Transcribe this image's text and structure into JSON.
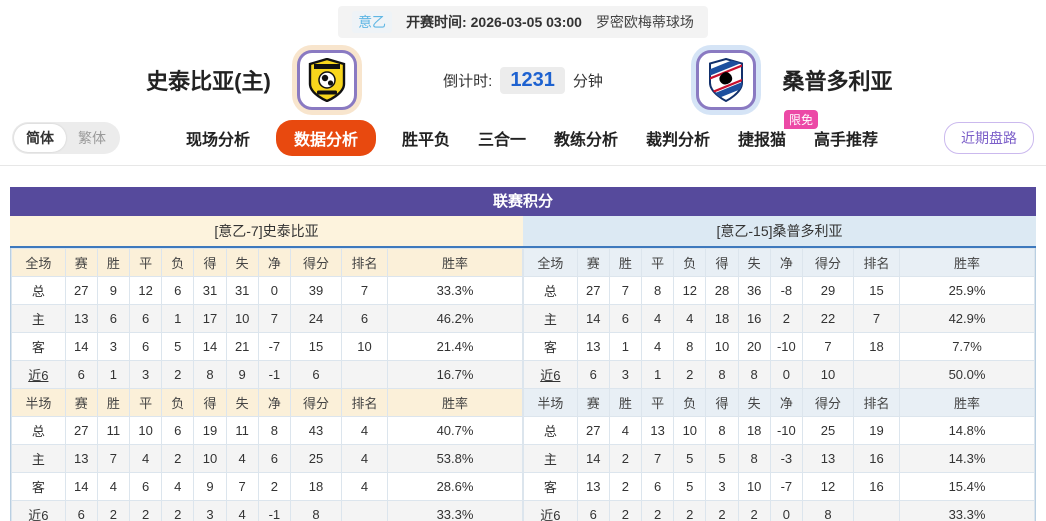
{
  "match_bar": {
    "league": "意乙",
    "kickoff_label": "开赛时间:",
    "kickoff_time": "2026-03-05 03:00",
    "venue": "罗密欧梅蒂球场"
  },
  "teams": {
    "home": {
      "name": "史泰比亚(主)",
      "logo": "spezia-crest"
    },
    "away": {
      "name": "桑普多利亚",
      "logo": "sampdoria-crest"
    }
  },
  "countdown": {
    "label": "倒计时:",
    "value": "1231",
    "unit": "分钟"
  },
  "nav": {
    "lang_simplified": "简体",
    "lang_traditional": "繁体",
    "items": [
      "现场分析",
      "数据分析",
      "胜平负",
      "三合一",
      "教练分析",
      "裁判分析",
      "捷报猫",
      "高手推荐"
    ],
    "active_item": "数据分析",
    "badge": "限免",
    "recent_button": "近期盘路"
  },
  "table": {
    "title": "联赛积分",
    "home": {
      "subtitle": "[意乙-7]史泰比亚",
      "full": {
        "header": [
          "全场",
          "赛",
          "胜",
          "平",
          "负",
          "得",
          "失",
          "净",
          "得分",
          "排名",
          "胜率"
        ],
        "rows": [
          [
            "总",
            "27",
            "9",
            "12",
            "6",
            "31",
            "31",
            "0",
            "39",
            "7",
            "33.3%"
          ],
          [
            "主",
            "13",
            "6",
            "6",
            "1",
            "17",
            "10",
            "7",
            "24",
            "6",
            "46.2%"
          ],
          [
            "客",
            "14",
            "3",
            "6",
            "5",
            "14",
            "21",
            "-7",
            "15",
            "10",
            "21.4%"
          ],
          [
            "近6",
            "6",
            "1",
            "3",
            "2",
            "8",
            "9",
            "-1",
            "6",
            "",
            "16.7%"
          ]
        ]
      },
      "half": {
        "header": [
          "半场",
          "赛",
          "胜",
          "平",
          "负",
          "得",
          "失",
          "净",
          "得分",
          "排名",
          "胜率"
        ],
        "rows": [
          [
            "总",
            "27",
            "11",
            "10",
            "6",
            "19",
            "11",
            "8",
            "43",
            "4",
            "40.7%"
          ],
          [
            "主",
            "13",
            "7",
            "4",
            "2",
            "10",
            "4",
            "6",
            "25",
            "4",
            "53.8%"
          ],
          [
            "客",
            "14",
            "4",
            "6",
            "4",
            "9",
            "7",
            "2",
            "18",
            "4",
            "28.6%"
          ],
          [
            "近6",
            "6",
            "2",
            "2",
            "2",
            "3",
            "4",
            "-1",
            "8",
            "",
            "33.3%"
          ]
        ]
      }
    },
    "away": {
      "subtitle": "[意乙-15]桑普多利亚",
      "full": {
        "header": [
          "全场",
          "赛",
          "胜",
          "平",
          "负",
          "得",
          "失",
          "净",
          "得分",
          "排名",
          "胜率"
        ],
        "rows": [
          [
            "总",
            "27",
            "7",
            "8",
            "12",
            "28",
            "36",
            "-8",
            "29",
            "15",
            "25.9%"
          ],
          [
            "主",
            "14",
            "6",
            "4",
            "4",
            "18",
            "16",
            "2",
            "22",
            "7",
            "42.9%"
          ],
          [
            "客",
            "13",
            "1",
            "4",
            "8",
            "10",
            "20",
            "-10",
            "7",
            "18",
            "7.7%"
          ],
          [
            "近6",
            "6",
            "3",
            "1",
            "2",
            "8",
            "8",
            "0",
            "10",
            "",
            "50.0%"
          ]
        ]
      },
      "half": {
        "header": [
          "半场",
          "赛",
          "胜",
          "平",
          "负",
          "得",
          "失",
          "净",
          "得分",
          "排名",
          "胜率"
        ],
        "rows": [
          [
            "总",
            "27",
            "4",
            "13",
            "10",
            "8",
            "18",
            "-10",
            "25",
            "19",
            "14.8%"
          ],
          [
            "主",
            "14",
            "2",
            "7",
            "5",
            "5",
            "8",
            "-3",
            "13",
            "16",
            "14.3%"
          ],
          [
            "客",
            "13",
            "2",
            "6",
            "5",
            "3",
            "10",
            "-7",
            "12",
            "16",
            "15.4%"
          ],
          [
            "近6",
            "6",
            "2",
            "2",
            "2",
            "2",
            "2",
            "0",
            "8",
            "",
            "33.3%"
          ]
        ]
      }
    }
  },
  "colors": {
    "accent_orange": "#e8490f",
    "header_purple": "#564a9c",
    "home_header_bg": "#fbf0d9",
    "home_subtitle_bg": "#fdf3dd",
    "away_header_bg": "#e8eff5",
    "away_subtitle_bg": "#dce9f3",
    "label_red": "#d93636",
    "label_blue": "#2f4bd6",
    "countdown_blue": "#1e62d0",
    "badge_pink": "#ec49a6",
    "button_purple": "#7c5fc9",
    "league_blue": "#5eb6e4"
  }
}
